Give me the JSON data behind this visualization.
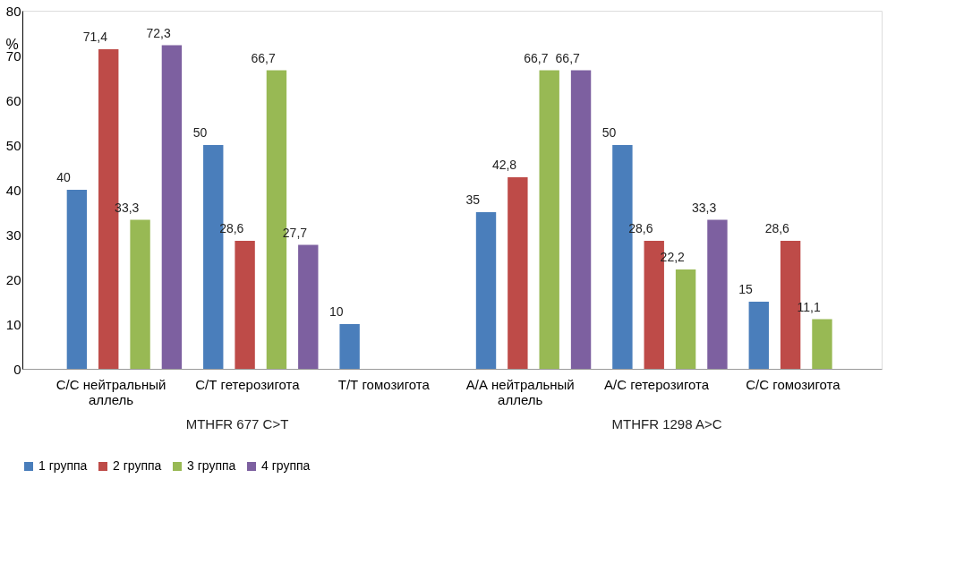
{
  "chart_data": {
    "type": "bar",
    "ylabel": "%",
    "categories": [
      "С/С нейтральный аллель",
      "С/Т гетерозигота",
      "Т/Т гомозигота",
      "А/А нейтральный аллель",
      "А/С гетерозигота",
      "С/С гомозигота"
    ],
    "series": [
      {
        "name": "1 группа",
        "color": "#4a7ebb",
        "values": [
          40,
          50,
          10,
          35,
          50,
          15
        ],
        "value_labels": [
          "40",
          "50",
          "10",
          "35",
          "50",
          "15"
        ]
      },
      {
        "name": "2 группа",
        "color": "#be4b48",
        "values": [
          71.4,
          28.6,
          null,
          42.8,
          28.6,
          28.6
        ],
        "value_labels": [
          "71,4",
          "28,6",
          null,
          "42,8",
          "28,6",
          "28,6"
        ]
      },
      {
        "name": "3 группа",
        "color": "#98b954",
        "values": [
          33.3,
          66.7,
          null,
          66.7,
          22.2,
          11.1
        ],
        "value_labels": [
          "33,3",
          "66,7",
          null,
          "66,7",
          "22,2",
          "11,1"
        ]
      },
      {
        "name": "4 группа",
        "color": "#7d60a0",
        "values": [
          72.3,
          27.7,
          null,
          66.7,
          33.3,
          null
        ],
        "value_labels": [
          "72,3",
          "27,7",
          null,
          "66,7",
          "33,3",
          null
        ]
      }
    ],
    "annotations": [
      "MTHFR 677 C>T",
      "MTHFR 1298 A>C"
    ],
    "ylim": [
      0,
      80
    ],
    "yticks": [
      0,
      10,
      20,
      30,
      40,
      50,
      60,
      70,
      80
    ],
    "grid": false,
    "legend": "bottom"
  }
}
